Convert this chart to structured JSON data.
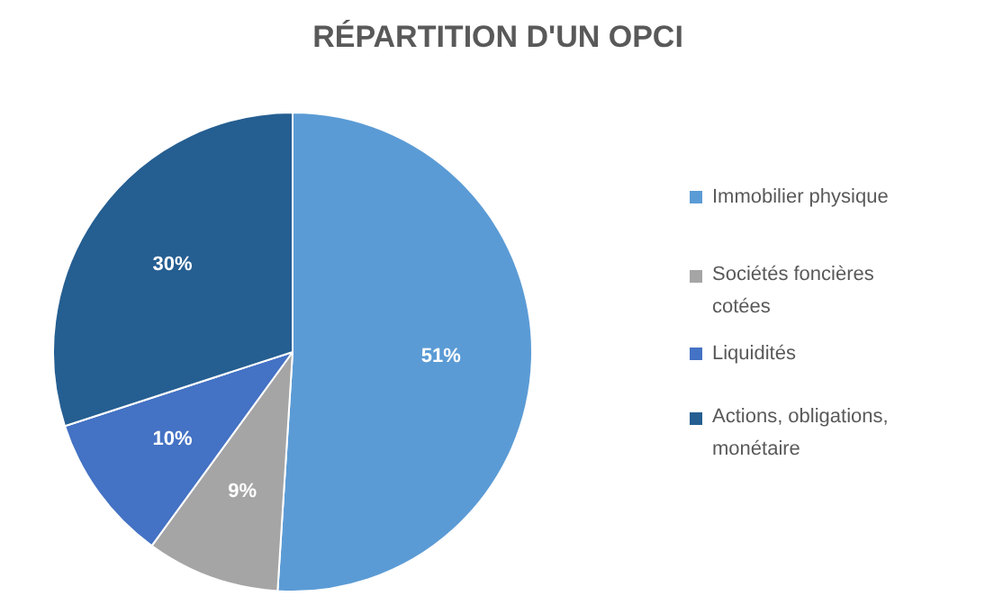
{
  "chart_data": {
    "type": "pie",
    "title": "RÉPARTITION D'UN OPCI",
    "categories": [
      "Immobilier physique",
      "Sociétés foncières cotées",
      "Liquidités",
      "Actions, obligations, monétaire"
    ],
    "values": [
      51,
      9,
      10,
      30
    ],
    "colors": [
      "#5b9bd5",
      "#a5a5a5",
      "#4472c4",
      "#255e91"
    ],
    "value_labels": [
      "51%",
      "9%",
      "10%",
      "30%"
    ],
    "legend": "right"
  }
}
